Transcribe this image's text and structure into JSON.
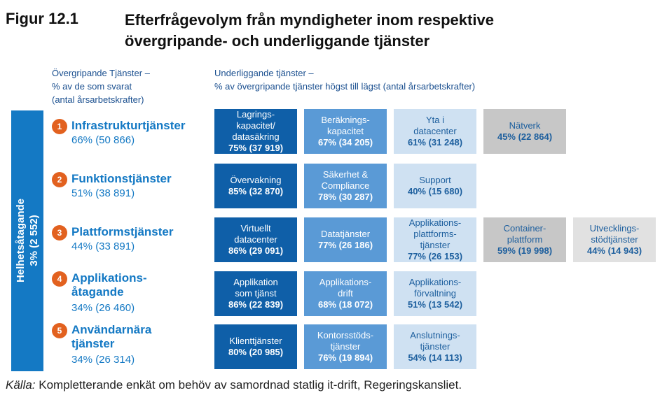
{
  "title": {
    "number": "Figur 12.1",
    "line1": "Efterfrågevolym från myndigheter inom respektive",
    "line2": "övergripande- och underliggande tjänster"
  },
  "header_left": {
    "line1": "Övergripande Tjänster –",
    "line2": "% av de som svarat",
    "line3": "(antal årsarbetskrafter)"
  },
  "header_right": {
    "line1": "Underliggande tjänster –",
    "line2": "% av övergripande tjänster högst till lägst (antal årsarbetskrafter)"
  },
  "overall": {
    "line1": "Helhetsåtagande",
    "line2": "3% (2 552)"
  },
  "categories": [
    {
      "num": "1",
      "name1": "Infrastrukturtjänster",
      "name2": "",
      "value": "66% (50 866)"
    },
    {
      "num": "2",
      "name1": "Funktionstjänster",
      "name2": "",
      "value": "51% (38 891)"
    },
    {
      "num": "3",
      "name1": "Plattformstjänster",
      "name2": "",
      "value": "44% (33 891)"
    },
    {
      "num": "4",
      "name1": "Applikations-",
      "name2": "åtagande",
      "value": "34% (26 460)"
    },
    {
      "num": "5",
      "name1": "Användarnära",
      "name2": "tjänster",
      "value": "34% (26 314)"
    }
  ],
  "rows": [
    [
      {
        "l1": "Lagrings-",
        "l2": "kapacitet/",
        "l3": "datasäkring",
        "val": "75% (37 919)"
      },
      {
        "l1": "Beräknings-",
        "l2": "kapacitet",
        "l3": "",
        "val": "67% (34 205)"
      },
      {
        "l1": "Yta i",
        "l2": "datacenter",
        "l3": "",
        "val": "61% (31 248)"
      },
      {
        "l1": "Nätverk",
        "l2": "",
        "l3": "",
        "val": "45% (22 864)"
      }
    ],
    [
      {
        "l1": "Övervakning",
        "l2": "",
        "l3": "",
        "val": "85% (32 870)"
      },
      {
        "l1": "Säkerhet &",
        "l2": "Compliance",
        "l3": "",
        "val": "78% (30 287)"
      },
      {
        "l1": "Support",
        "l2": "",
        "l3": "",
        "val": "40% (15 680)"
      }
    ],
    [
      {
        "l1": "Virtuellt",
        "l2": "datacenter",
        "l3": "",
        "val": "86% (29 091)"
      },
      {
        "l1": "Datatjänster",
        "l2": "",
        "l3": "",
        "val": "77% (26 186)"
      },
      {
        "l1": "Applikations-",
        "l2": "plattforms-",
        "l3": "tjänster",
        "val": "77% (26 153)"
      },
      {
        "l1": "Container-",
        "l2": "plattform",
        "l3": "",
        "val": "59% (19 998)"
      },
      {
        "l1": "Utvecklings-",
        "l2": "stödtjänster",
        "l3": "",
        "val": "44% (14 943)"
      }
    ],
    [
      {
        "l1": "Applikation",
        "l2": "som tjänst",
        "l3": "",
        "val": "86% (22 839)"
      },
      {
        "l1": "Applikations-",
        "l2": "drift",
        "l3": "",
        "val": "68% (18 072)"
      },
      {
        "l1": "Applikations-",
        "l2": "förvaltning",
        "l3": "",
        "val": "51% (13 542)"
      }
    ],
    [
      {
        "l1": "Klienttjänster",
        "l2": "",
        "l3": "",
        "val": "80% (20 985)"
      },
      {
        "l1": "Kontorsstöds-",
        "l2": "tjänster",
        "l3": "",
        "val": "76% (19 894)"
      },
      {
        "l1": "Anslutnings-",
        "l2": "tjänster",
        "l3": "",
        "val": "54% (14 113)"
      }
    ]
  ],
  "source": {
    "label": "Källa:",
    "text": "Kompletterande enkät om behöv av samordnad statlig it-drift, Regeringskansliet."
  },
  "colors": {
    "overall_bar": "#1479c4",
    "number_badge": "#e2611f",
    "col1": "#0f5fa8",
    "col2": "#5a9ad6",
    "col3": "#cfe1f2",
    "col4": "#c7c7c7",
    "col5": "#e1e1e1"
  }
}
